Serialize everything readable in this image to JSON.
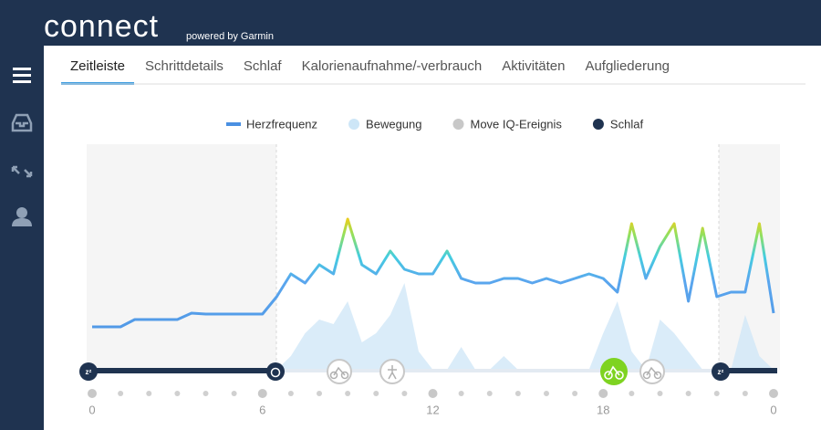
{
  "header": {
    "logo": "connect",
    "tagline": "powered by Garmin"
  },
  "tabs": [
    "Zeitleiste",
    "Schrittdetails",
    "Schlaf",
    "Kalorienaufnahme/-verbrauch",
    "Aktivitäten",
    "Aufgliederung"
  ],
  "active_tab": 0,
  "chart_data": {
    "type": "line",
    "x": [
      0,
      0.5,
      1,
      1.5,
      2,
      2.5,
      3,
      3.5,
      4,
      4.5,
      5,
      5.5,
      6,
      6.5,
      7,
      7.5,
      8,
      8.5,
      9,
      9.5,
      10,
      10.5,
      11,
      11.5,
      12,
      12.5,
      13,
      13.5,
      14,
      14.5,
      15,
      15.5,
      16,
      16.5,
      17,
      17.5,
      18,
      18.5,
      19,
      19.5,
      20,
      20.5,
      21,
      21.5,
      22,
      22.5,
      23,
      23.5,
      24
    ],
    "xlim": [
      0,
      24
    ],
    "xticks": [
      {
        "value": 0,
        "label": "0"
      },
      6,
      12,
      18,
      {
        "value": 24,
        "label": "0"
      }
    ],
    "ylim": [
      0,
      180
    ],
    "series": [
      {
        "name": "Herzfrequenz",
        "color": "#4a90e2",
        "kind": "line",
        "values": [
          47,
          47,
          47,
          55,
          55,
          55,
          55,
          62,
          61,
          61,
          61,
          61,
          61,
          80,
          105,
          95,
          115,
          105,
          165,
          115,
          105,
          130,
          110,
          105,
          105,
          130,
          100,
          95,
          95,
          100,
          100,
          95,
          100,
          95,
          100,
          105,
          100,
          85,
          160,
          100,
          135,
          160,
          75,
          155,
          80,
          85,
          85,
          160,
          62
        ]
      },
      {
        "name": "Bewegung",
        "color": "#cde6f7",
        "kind": "area",
        "values": [
          0,
          0,
          0,
          0,
          0,
          0,
          0,
          0,
          0,
          0,
          0,
          0,
          0,
          0,
          15,
          40,
          55,
          50,
          75,
          30,
          40,
          60,
          95,
          20,
          0,
          0,
          25,
          0,
          0,
          15,
          0,
          0,
          0,
          0,
          0,
          0,
          40,
          75,
          20,
          0,
          55,
          40,
          20,
          0,
          0,
          0,
          60,
          15,
          0
        ]
      },
      {
        "name": "Move IQ-Ereignis",
        "color": "#c8c8c8",
        "kind": "legend"
      },
      {
        "name": "Schlaf",
        "color": "#1f3350",
        "kind": "legend"
      }
    ]
  }
}
